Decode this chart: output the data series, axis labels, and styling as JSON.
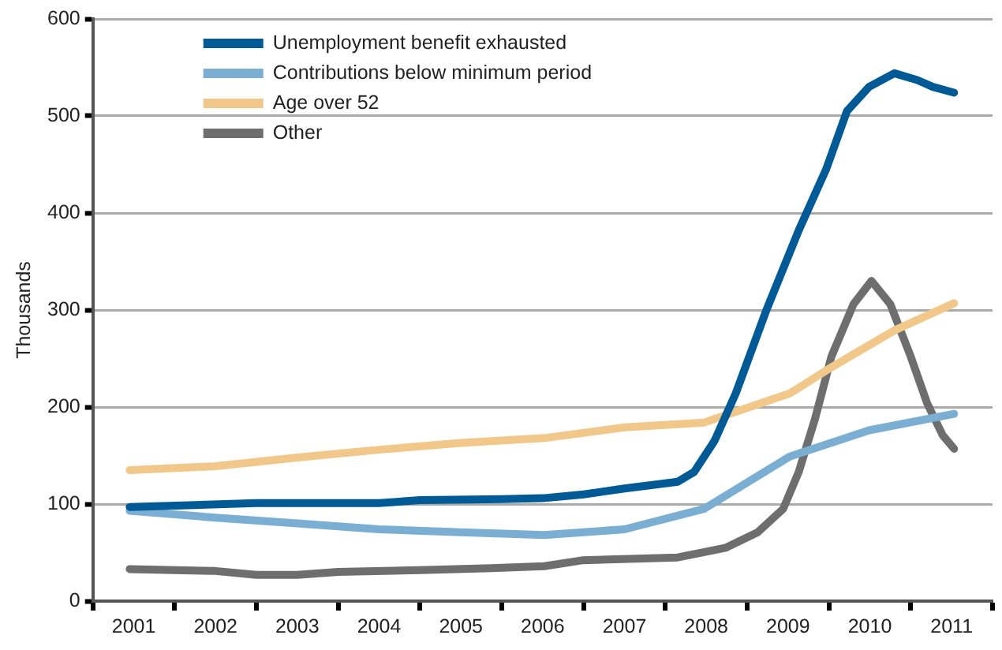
{
  "chart_data": {
    "type": "line",
    "ylabel": "Thousands",
    "xlim": [
      2001,
      2012
    ],
    "xticks": [
      {
        "value": 2001,
        "label": null
      },
      {
        "value": 2001.5,
        "label": "2001"
      },
      {
        "value": 2002,
        "label": null
      },
      {
        "value": 2002.5,
        "label": "2002"
      },
      {
        "value": 2003,
        "label": null
      },
      {
        "value": 2003.5,
        "label": "2003"
      },
      {
        "value": 2004,
        "label": null
      },
      {
        "value": 2004.5,
        "label": "2004"
      },
      {
        "value": 2005,
        "label": null
      },
      {
        "value": 2005.5,
        "label": "2005"
      },
      {
        "value": 2006,
        "label": null
      },
      {
        "value": 2006.5,
        "label": "2006"
      },
      {
        "value": 2007,
        "label": null
      },
      {
        "value": 2007.5,
        "label": "2007"
      },
      {
        "value": 2008,
        "label": null
      },
      {
        "value": 2008.5,
        "label": "2008"
      },
      {
        "value": 2009,
        "label": null
      },
      {
        "value": 2009.5,
        "label": "2009"
      },
      {
        "value": 2010,
        "label": null
      },
      {
        "value": 2010.5,
        "label": "2010"
      },
      {
        "value": 2011,
        "label": null
      },
      {
        "value": 2011.5,
        "label": "2011"
      },
      {
        "value": 2012,
        "label": null
      }
    ],
    "ylim": [
      0,
      600
    ],
    "yticks": [
      0,
      100,
      200,
      300,
      400,
      500,
      600
    ],
    "grid": "y",
    "legend": "top left",
    "marker": "none",
    "line_style": "solid",
    "series": [
      {
        "name": "Unemployment benefit exhausted",
        "color": "#005a96",
        "x": [
          2001.45,
          2003,
          2004.5,
          2005,
          2006,
          2006.5,
          2007,
          2007.5,
          2008.15,
          2008.35,
          2008.6,
          2008.86,
          2009.24,
          2009.63,
          2009.97,
          2010.22,
          2010.49,
          2010.8,
          2011.08,
          2011.27,
          2011.53
        ],
        "values": [
          97,
          101,
          101,
          104,
          105,
          106,
          110,
          116,
          123,
          133,
          165,
          214,
          301,
          382,
          446,
          505,
          530,
          544,
          537,
          530,
          524
        ]
      },
      {
        "name": "Contributions below minimum period",
        "color": "#7aaed3",
        "x": [
          2001.45,
          2002.5,
          2003.5,
          2004.5,
          2005.5,
          2006.52,
          2007.5,
          2008.47,
          2009.52,
          2010.49,
          2011.53
        ],
        "values": [
          93,
          86,
          80,
          74,
          71,
          68,
          74,
          95,
          149,
          176,
          193
        ]
      },
      {
        "name": "Age over 52",
        "color": "#f2c78a",
        "x": [
          2001.45,
          2002.5,
          2003.5,
          2004.5,
          2005.5,
          2006.52,
          2007.5,
          2008.47,
          2009.52,
          2010.03,
          2010.8,
          2011.53
        ],
        "values": [
          135,
          139,
          148,
          156,
          163,
          168,
          179,
          184,
          214,
          241,
          279,
          307
        ]
      },
      {
        "name": "Other",
        "color": "#6e6e6e",
        "x": [
          2001.45,
          2002.5,
          2003,
          2003.5,
          2004,
          2005,
          2005.87,
          2006.52,
          2006.98,
          2008.15,
          2008.74,
          2009.13,
          2009.44,
          2009.63,
          2009.83,
          2010.03,
          2010.3,
          2010.52,
          2010.75,
          2011,
          2011.2,
          2011.39,
          2011.53
        ],
        "values": [
          33,
          31,
          27,
          27,
          30,
          32,
          34,
          36,
          42,
          45,
          55,
          71,
          95,
          133,
          188,
          252,
          306,
          330,
          306,
          252,
          204,
          171,
          157
        ]
      }
    ]
  }
}
